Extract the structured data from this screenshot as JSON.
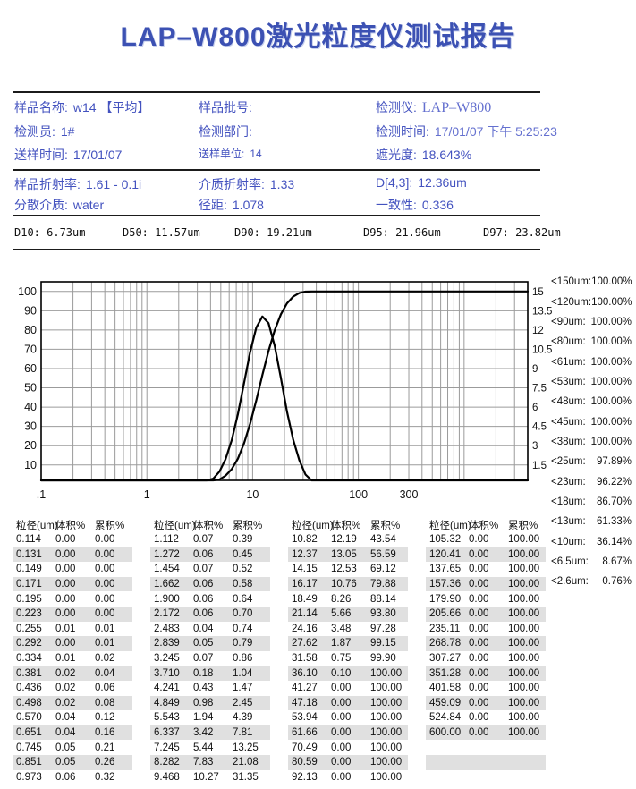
{
  "title": "LAP–W800激光粒度仪测试报告",
  "info": {
    "rows": [
      [
        {
          "label": "样品名称:",
          "value": "w14 【平均】"
        },
        {
          "label": "样品批号:",
          "value": ""
        },
        {
          "label": "检测仪:",
          "value": "LAP–W800",
          "serif": true
        }
      ],
      [
        {
          "label": "检测员:",
          "value": "1#"
        },
        {
          "label": "检测部门:",
          "value": ""
        },
        {
          "label": "检测时间:",
          "value": "17/01/07 下午 5:25:23",
          "light": true
        }
      ],
      [
        {
          "label": "送样时间:",
          "value": "17/01/07"
        },
        {
          "label": "送样单位:",
          "value": "14",
          "small": true
        },
        {
          "label": "遮光度:",
          "value": "18.643%"
        }
      ]
    ]
  },
  "params": {
    "rows": [
      [
        {
          "label": "样品折射率:",
          "value": "1.61 - 0.1i"
        },
        {
          "label": "介质折射率:",
          "value": "1.33"
        },
        {
          "label": "D[4,3]:",
          "value": "12.36um"
        }
      ],
      [
        {
          "label": "分散介质:",
          "value": "water"
        },
        {
          "label": "径距:",
          "value": "1.078"
        },
        {
          "label": "一致性:",
          "value": "0.336"
        }
      ]
    ]
  },
  "d_values": [
    {
      "label": "D10:",
      "value": "6.73um"
    },
    {
      "label": "D50:",
      "value": "11.57um"
    },
    {
      "label": "D90:",
      "value": "19.21um"
    },
    {
      "label": "D95:",
      "value": "21.96um"
    },
    {
      "label": "D97:",
      "value": "23.82um"
    }
  ],
  "thresholds": [
    {
      "label": "<150um:",
      "value": "100.00%"
    },
    {
      "label": "<120um:",
      "value": "100.00%"
    },
    {
      "label": "<90um:",
      "value": "100.00%"
    },
    {
      "label": "<80um:",
      "value": "100.00%"
    },
    {
      "label": "<61um:",
      "value": "100.00%"
    },
    {
      "label": "<53um:",
      "value": "100.00%"
    },
    {
      "label": "<48um:",
      "value": "100.00%"
    },
    {
      "label": "<45um:",
      "value": "100.00%"
    },
    {
      "label": "<38um:",
      "value": "100.00%"
    },
    {
      "label": "<25um:",
      "value": "97.89%"
    },
    {
      "label": "<23um:",
      "value": "96.22%"
    },
    {
      "label": "<18um:",
      "value": "86.70%"
    },
    {
      "label": "<13um:",
      "value": "61.33%"
    },
    {
      "label": "<10um:",
      "value": "36.14%"
    },
    {
      "label": "<6.5um:",
      "value": "8.67%"
    },
    {
      "label": "<2.6um:",
      "value": "0.76%"
    }
  ],
  "table": {
    "headers": [
      "粒径(um)",
      "体积%",
      "累积%"
    ],
    "group_slices": [
      [
        0,
        17
      ],
      [
        17,
        34
      ],
      [
        34,
        51
      ],
      [
        51,
        65
      ]
    ]
  },
  "chart_data": {
    "type": "line",
    "x_scale": "log",
    "x_range": [
      0.1,
      4000
    ],
    "x_tick_values": [
      0.1,
      1,
      10,
      100,
      300
    ],
    "x_tick_labels": [
      ".1",
      "1",
      "10",
      "100",
      "300"
    ],
    "y_left": {
      "ticks": [
        10,
        20,
        30,
        40,
        50,
        60,
        70,
        80,
        90,
        100
      ],
      "range": [
        2,
        105
      ]
    },
    "y_right": {
      "ticks": [
        "1.5",
        "3",
        "4.5",
        "6",
        "7.5",
        "9",
        "10.5",
        "12",
        "13.5",
        "15"
      ]
    },
    "grid": true,
    "sizes_um": [
      0.114,
      0.131,
      0.149,
      0.171,
      0.195,
      0.223,
      0.255,
      0.292,
      0.334,
      0.381,
      0.436,
      0.498,
      0.57,
      0.651,
      0.745,
      0.851,
      0.973,
      1.112,
      1.272,
      1.454,
      1.662,
      1.9,
      2.172,
      2.483,
      2.839,
      3.245,
      3.71,
      4.241,
      4.849,
      5.543,
      6.337,
      7.245,
      8.282,
      9.468,
      10.82,
      12.37,
      14.15,
      16.17,
      18.49,
      21.14,
      24.16,
      27.62,
      31.58,
      36.1,
      41.27,
      47.18,
      53.94,
      61.66,
      70.49,
      80.59,
      92.13,
      105.32,
      120.41,
      137.65,
      157.36,
      179.9,
      205.66,
      235.11,
      268.78,
      307.27,
      351.28,
      401.58,
      459.09,
      524.84,
      600.0
    ],
    "series": [
      {
        "key": "volume",
        "name": "体积%",
        "axis": "right",
        "values": [
          0,
          0,
          0,
          0,
          0,
          0,
          0.01,
          0,
          0.01,
          0.02,
          0.02,
          0.02,
          0.04,
          0.04,
          0.05,
          0.05,
          0.06,
          0.07,
          0.06,
          0.07,
          0.06,
          0.06,
          0.06,
          0.04,
          0.05,
          0.07,
          0.18,
          0.43,
          0.98,
          1.94,
          3.42,
          5.44,
          7.83,
          10.27,
          12.19,
          13.05,
          12.53,
          10.76,
          8.26,
          5.66,
          3.48,
          1.87,
          0.75,
          0.1,
          0,
          0,
          0,
          0,
          0,
          0,
          0,
          0,
          0,
          0,
          0,
          0,
          0,
          0,
          0,
          0,
          0,
          0,
          0,
          0,
          0
        ]
      },
      {
        "key": "cumulative",
        "name": "累积%",
        "axis": "left",
        "values": [
          0,
          0,
          0,
          0,
          0,
          0,
          0.01,
          0.01,
          0.02,
          0.04,
          0.06,
          0.08,
          0.12,
          0.16,
          0.21,
          0.26,
          0.32,
          0.39,
          0.45,
          0.52,
          0.58,
          0.64,
          0.7,
          0.74,
          0.79,
          0.86,
          1.04,
          1.47,
          2.45,
          4.39,
          7.81,
          13.25,
          21.08,
          31.35,
          43.54,
          56.59,
          69.12,
          79.88,
          88.14,
          93.8,
          97.28,
          99.15,
          99.9,
          100,
          100,
          100,
          100,
          100,
          100,
          100,
          100,
          100,
          100,
          100,
          100,
          100,
          100,
          100,
          100,
          100,
          100,
          100,
          100,
          100,
          100
        ]
      }
    ]
  }
}
